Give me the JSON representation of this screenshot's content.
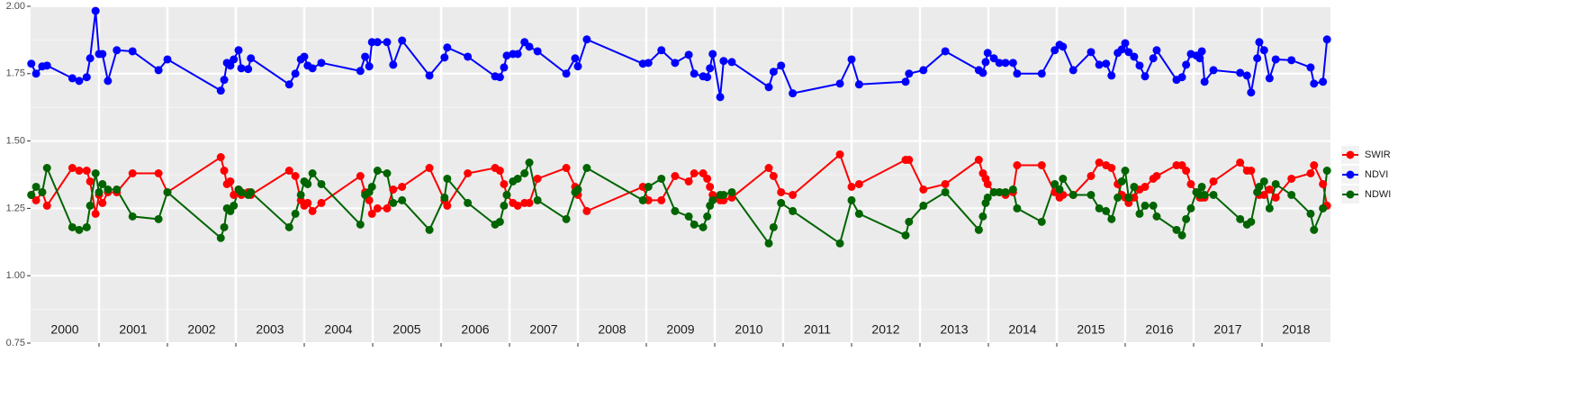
{
  "chart_data": {
    "type": "line",
    "x": [
      2000.01,
      2000.08,
      2000.17,
      2000.24,
      2000.61,
      2000.71,
      2000.82,
      2000.87,
      2000.95,
      2001.0,
      2001.05,
      2001.13,
      2001.26,
      2001.49,
      2001.87,
      2002.0,
      2002.78,
      2002.83,
      2002.87,
      2002.92,
      2002.97,
      2003.04,
      2003.08,
      2003.18,
      2003.22,
      2003.78,
      2003.87,
      2003.95,
      2004.0,
      2004.05,
      2004.12,
      2004.25,
      2004.82,
      2004.89,
      2004.95,
      2004.99,
      2005.07,
      2005.21,
      2005.3,
      2005.43,
      2005.83,
      2006.05,
      2006.09,
      2006.39,
      2006.79,
      2006.86,
      2006.92,
      2006.96,
      2007.05,
      2007.12,
      2007.22,
      2007.29,
      2007.41,
      2007.83,
      2007.96,
      2008.0,
      2008.13,
      2008.95,
      2009.03,
      2009.22,
      2009.42,
      2009.62,
      2009.7,
      2009.83,
      2009.89,
      2009.93,
      2009.97,
      2010.08,
      2010.13,
      2010.25,
      2010.79,
      2010.86,
      2010.97,
      2011.14,
      2011.83,
      2012.0,
      2012.11,
      2012.79,
      2012.84,
      2013.05,
      2013.37,
      2013.86,
      2013.92,
      2013.96,
      2013.99,
      2014.08,
      2014.16,
      2014.25,
      2014.36,
      2014.42,
      2014.78,
      2014.97,
      2015.04,
      2015.09,
      2015.24,
      2015.5,
      2015.62,
      2015.72,
      2015.8,
      2015.89,
      2015.95,
      2016.0,
      2016.05,
      2016.13,
      2016.21,
      2016.29,
      2016.41,
      2016.46,
      2016.75,
      2016.83,
      2016.89,
      2016.96,
      2017.04,
      2017.09,
      2017.12,
      2017.16,
      2017.29,
      2017.68,
      2017.78,
      2017.84,
      2017.93,
      2017.96,
      2018.03,
      2018.11,
      2018.2,
      2018.43,
      2018.71,
      2018.76,
      2018.89,
      2018.95
    ],
    "series": [
      {
        "name": "SWIR",
        "color": "#ff0000",
        "values": [
          1.3,
          1.28,
          1.31,
          1.26,
          1.4,
          1.39,
          1.39,
          1.35,
          1.23,
          1.3,
          1.27,
          1.31,
          1.31,
          1.38,
          1.38,
          1.31,
          1.44,
          1.39,
          1.34,
          1.35,
          1.3,
          1.32,
          1.3,
          1.31,
          1.3,
          1.39,
          1.37,
          1.28,
          1.26,
          1.27,
          1.24,
          1.27,
          1.37,
          1.31,
          1.28,
          1.23,
          1.25,
          1.25,
          1.32,
          1.33,
          1.4,
          1.28,
          1.26,
          1.38,
          1.4,
          1.39,
          1.34,
          1.3,
          1.27,
          1.26,
          1.27,
          1.27,
          1.36,
          1.4,
          1.33,
          1.3,
          1.24,
          1.33,
          1.28,
          1.28,
          1.37,
          1.35,
          1.38,
          1.38,
          1.36,
          1.33,
          1.3,
          1.28,
          1.28,
          1.29,
          1.4,
          1.37,
          1.31,
          1.3,
          1.45,
          1.33,
          1.34,
          1.43,
          1.43,
          1.32,
          1.34,
          1.43,
          1.38,
          1.36,
          1.34,
          1.31,
          1.31,
          1.3,
          1.31,
          1.41,
          1.41,
          1.31,
          1.29,
          1.3,
          1.3,
          1.37,
          1.42,
          1.41,
          1.4,
          1.34,
          1.3,
          1.29,
          1.27,
          1.29,
          1.32,
          1.33,
          1.36,
          1.37,
          1.41,
          1.41,
          1.39,
          1.34,
          1.31,
          1.29,
          1.29,
          1.29,
          1.35,
          1.42,
          1.39,
          1.39,
          1.31,
          1.3,
          1.3,
          1.32,
          1.29,
          1.36,
          1.38,
          1.41,
          1.34,
          1.26
        ]
      },
      {
        "name": "NDVI",
        "color": "#0000ff",
        "values": [
          1.787,
          1.75,
          1.777,
          1.78,
          1.733,
          1.723,
          1.737,
          1.807,
          1.983,
          1.823,
          1.823,
          1.723,
          1.837,
          1.833,
          1.763,
          1.803,
          1.687,
          1.727,
          1.79,
          1.78,
          1.803,
          1.837,
          1.77,
          1.767,
          1.807,
          1.71,
          1.75,
          1.803,
          1.813,
          1.78,
          1.77,
          1.79,
          1.76,
          1.813,
          1.777,
          1.867,
          1.867,
          1.867,
          1.783,
          1.873,
          1.743,
          1.81,
          1.847,
          1.813,
          1.74,
          1.737,
          1.773,
          1.817,
          1.823,
          1.823,
          1.867,
          1.85,
          1.833,
          1.75,
          1.807,
          1.777,
          1.877,
          1.787,
          1.79,
          1.837,
          1.79,
          1.82,
          1.75,
          1.74,
          1.737,
          1.77,
          1.823,
          1.663,
          1.797,
          1.793,
          1.7,
          1.757,
          1.78,
          1.677,
          1.713,
          1.803,
          1.71,
          1.72,
          1.75,
          1.763,
          1.833,
          1.763,
          1.753,
          1.793,
          1.827,
          1.807,
          1.79,
          1.79,
          1.79,
          1.75,
          1.75,
          1.837,
          1.857,
          1.85,
          1.763,
          1.83,
          1.783,
          1.787,
          1.743,
          1.827,
          1.84,
          1.863,
          1.83,
          1.813,
          1.78,
          1.74,
          1.807,
          1.837,
          1.727,
          1.737,
          1.783,
          1.823,
          1.817,
          1.807,
          1.833,
          1.72,
          1.763,
          1.753,
          1.743,
          1.68,
          1.807,
          1.867,
          1.837,
          1.733,
          1.803,
          1.8,
          1.773,
          1.713,
          1.72,
          1.877
        ]
      },
      {
        "name": "NDWI",
        "color": "#006400",
        "values": [
          1.3,
          1.33,
          1.31,
          1.4,
          1.18,
          1.17,
          1.18,
          1.26,
          1.38,
          1.31,
          1.34,
          1.32,
          1.32,
          1.22,
          1.21,
          1.31,
          1.14,
          1.18,
          1.25,
          1.24,
          1.26,
          1.32,
          1.31,
          1.3,
          1.31,
          1.18,
          1.23,
          1.3,
          1.35,
          1.34,
          1.38,
          1.34,
          1.19,
          1.3,
          1.31,
          1.33,
          1.39,
          1.38,
          1.27,
          1.28,
          1.17,
          1.29,
          1.36,
          1.27,
          1.19,
          1.2,
          1.26,
          1.3,
          1.35,
          1.36,
          1.38,
          1.42,
          1.28,
          1.21,
          1.31,
          1.32,
          1.4,
          1.28,
          1.33,
          1.36,
          1.24,
          1.22,
          1.19,
          1.18,
          1.22,
          1.26,
          1.28,
          1.3,
          1.3,
          1.31,
          1.12,
          1.18,
          1.27,
          1.24,
          1.12,
          1.28,
          1.23,
          1.15,
          1.2,
          1.26,
          1.31,
          1.17,
          1.22,
          1.27,
          1.29,
          1.31,
          1.31,
          1.31,
          1.32,
          1.25,
          1.2,
          1.34,
          1.32,
          1.36,
          1.3,
          1.3,
          1.25,
          1.24,
          1.21,
          1.29,
          1.35,
          1.39,
          1.29,
          1.33,
          1.23,
          1.26,
          1.26,
          1.22,
          1.17,
          1.15,
          1.21,
          1.25,
          1.31,
          1.3,
          1.33,
          1.3,
          1.3,
          1.21,
          1.19,
          1.2,
          1.31,
          1.33,
          1.35,
          1.25,
          1.34,
          1.3,
          1.23,
          1.17,
          1.25,
          1.39
        ]
      }
    ],
    "xlim": [
      2000,
      2019
    ],
    "xticks": [
      2001,
      2002,
      2003,
      2004,
      2005,
      2006,
      2007,
      2008,
      2009,
      2010,
      2011,
      2012,
      2013,
      2014,
      2015,
      2016,
      2017,
      2018
    ],
    "year_labels": [
      2000,
      2001,
      2002,
      2003,
      2004,
      2005,
      2006,
      2007,
      2008,
      2009,
      2010,
      2011,
      2012,
      2013,
      2014,
      2015,
      2016,
      2017,
      2018
    ],
    "ylim": [
      0.75,
      2.0
    ],
    "yticks": [
      0.75,
      {
        "value": 1.0,
        "label": "1.00"
      },
      1.25,
      {
        "value": 1.5,
        "label": "1.50"
      },
      1.75,
      {
        "value": 2.0,
        "label": "2.00"
      }
    ],
    "grid": true,
    "legend": "right"
  }
}
